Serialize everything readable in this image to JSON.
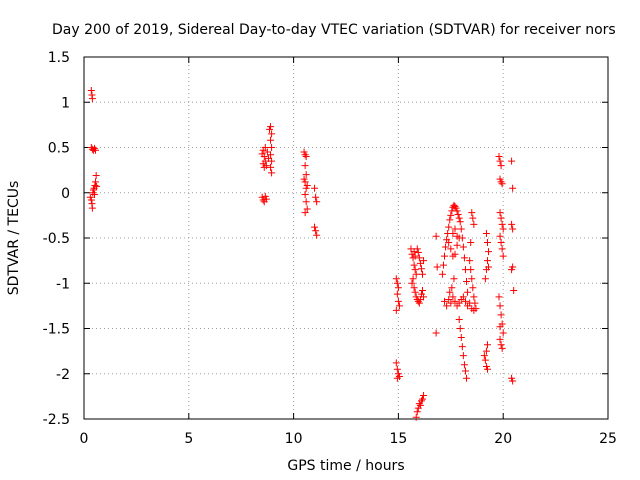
{
  "chart_data": {
    "type": "scatter",
    "title": "Day 200 of 2019, Sidereal Day-to-day VTEC variation (SDTVAR) for receiver nors",
    "xlabel": "GPS time / hours",
    "ylabel": "SDTVAR / TECUs",
    "xlim": [
      0,
      25
    ],
    "ylim": [
      -2.5,
      1.5
    ],
    "xticks": [
      0,
      5,
      10,
      15,
      20,
      25
    ],
    "yticks": [
      -2.5,
      -2,
      -1.5,
      -1,
      -0.5,
      0,
      0.5,
      1,
      1.5
    ],
    "xtick_labels": [
      "0",
      "5",
      "10",
      "15",
      "20",
      "25"
    ],
    "ytick_labels": [
      "-2.5",
      "-2",
      "-1.5",
      "-1",
      "-0.5",
      "0",
      "0.5",
      "1",
      "1.5"
    ],
    "grid": true,
    "marker": "plus",
    "color": "#ff0000",
    "points": [
      [
        0.35,
        1.13
      ],
      [
        0.38,
        1.08
      ],
      [
        0.4,
        1.04
      ],
      [
        0.35,
        0.5
      ],
      [
        0.4,
        0.48
      ],
      [
        0.45,
        0.47
      ],
      [
        0.5,
        0.49
      ],
      [
        0.55,
        0.47
      ],
      [
        0.3,
        -0.05
      ],
      [
        0.35,
        -0.08
      ],
      [
        0.38,
        -0.12
      ],
      [
        0.4,
        -0.17
      ],
      [
        0.42,
        0.0
      ],
      [
        0.45,
        0.03
      ],
      [
        0.48,
        0.05
      ],
      [
        0.5,
        -0.02
      ],
      [
        0.52,
        0.08
      ],
      [
        0.55,
        0.12
      ],
      [
        0.58,
        0.19
      ],
      [
        0.6,
        0.07
      ],
      [
        8.5,
        0.43
      ],
      [
        8.55,
        0.47
      ],
      [
        8.6,
        0.4
      ],
      [
        8.65,
        0.35
      ],
      [
        8.7,
        0.3
      ],
      [
        8.55,
        0.32
      ],
      [
        8.6,
        0.28
      ],
      [
        8.75,
        0.45
      ],
      [
        8.8,
        0.38
      ],
      [
        8.65,
        0.5
      ],
      [
        8.5,
        -0.05
      ],
      [
        8.55,
        -0.08
      ],
      [
        8.6,
        -0.1
      ],
      [
        8.65,
        -0.04
      ],
      [
        8.7,
        -0.07
      ],
      [
        8.85,
        0.7
      ],
      [
        8.9,
        0.73
      ],
      [
        8.95,
        0.65
      ],
      [
        8.9,
        0.58
      ],
      [
        8.95,
        0.5
      ],
      [
        8.9,
        0.42
      ],
      [
        8.95,
        0.35
      ],
      [
        8.9,
        0.28
      ],
      [
        8.95,
        0.22
      ],
      [
        10.5,
        0.45
      ],
      [
        10.55,
        0.42
      ],
      [
        10.6,
        0.4
      ],
      [
        10.55,
        0.3
      ],
      [
        10.6,
        0.2
      ],
      [
        10.55,
        0.12
      ],
      [
        10.6,
        0.05
      ],
      [
        10.55,
        -0.02
      ],
      [
        10.6,
        -0.1
      ],
      [
        10.65,
        -0.18
      ],
      [
        10.55,
        -0.22
      ],
      [
        10.5,
        0.15
      ],
      [
        10.65,
        0.08
      ],
      [
        11.0,
        0.05
      ],
      [
        11.05,
        -0.05
      ],
      [
        11.1,
        -0.1
      ],
      [
        11.0,
        -0.38
      ],
      [
        11.05,
        -0.42
      ],
      [
        11.1,
        -0.47
      ],
      [
        14.9,
        -0.95
      ],
      [
        14.95,
        -1.0
      ],
      [
        15.0,
        -1.05
      ],
      [
        14.95,
        -1.12
      ],
      [
        15.0,
        -1.2
      ],
      [
        15.05,
        -1.25
      ],
      [
        14.9,
        -1.3
      ],
      [
        14.9,
        -1.88
      ],
      [
        14.95,
        -1.95
      ],
      [
        15.0,
        -2.0
      ],
      [
        15.05,
        -2.03
      ],
      [
        14.95,
        -2.05
      ],
      [
        15.6,
        -0.62
      ],
      [
        15.65,
        -0.68
      ],
      [
        15.7,
        -0.72
      ],
      [
        15.75,
        -0.8
      ],
      [
        15.8,
        -0.85
      ],
      [
        15.85,
        -0.9
      ],
      [
        15.7,
        -0.95
      ],
      [
        15.65,
        -1.0
      ],
      [
        15.75,
        -1.05
      ],
      [
        15.8,
        -1.1
      ],
      [
        15.85,
        -1.15
      ],
      [
        15.9,
        -1.18
      ],
      [
        15.95,
        -1.2
      ],
      [
        16.0,
        -1.22
      ],
      [
        16.05,
        -1.18
      ],
      [
        16.1,
        -1.12
      ],
      [
        16.15,
        -1.08
      ],
      [
        16.2,
        -1.15
      ],
      [
        15.75,
        -0.65
      ],
      [
        15.8,
        -0.7
      ],
      [
        15.9,
        -0.62
      ],
      [
        15.95,
        -0.66
      ],
      [
        16.0,
        -0.72
      ],
      [
        16.05,
        -0.78
      ],
      [
        16.1,
        -0.84
      ],
      [
        16.15,
        -0.9
      ],
      [
        16.2,
        -0.75
      ],
      [
        15.85,
        -2.48
      ],
      [
        15.9,
        -2.42
      ],
      [
        15.95,
        -2.38
      ],
      [
        16.0,
        -2.33
      ],
      [
        16.05,
        -2.35
      ],
      [
        16.1,
        -2.3
      ],
      [
        16.15,
        -2.28
      ],
      [
        16.2,
        -2.24
      ],
      [
        16.8,
        -0.48
      ],
      [
        16.85,
        -0.82
      ],
      [
        16.8,
        -1.55
      ],
      [
        17.1,
        -0.9
      ],
      [
        17.15,
        -0.8
      ],
      [
        17.2,
        -0.7
      ],
      [
        17.25,
        -0.6
      ],
      [
        17.3,
        -0.52
      ],
      [
        17.35,
        -0.45
      ],
      [
        17.4,
        -0.38
      ],
      [
        17.45,
        -0.3
      ],
      [
        17.5,
        -0.25
      ],
      [
        17.55,
        -0.2
      ],
      [
        17.6,
        -0.16
      ],
      [
        17.65,
        -0.14
      ],
      [
        17.7,
        -0.15
      ],
      [
        17.75,
        -0.17
      ],
      [
        17.8,
        -0.2
      ],
      [
        17.85,
        -0.24
      ],
      [
        17.9,
        -0.28
      ],
      [
        17.95,
        -0.32
      ],
      [
        18.0,
        -0.4
      ],
      [
        18.05,
        -0.5
      ],
      [
        18.1,
        -0.6
      ],
      [
        18.15,
        -0.72
      ],
      [
        18.2,
        -0.85
      ],
      [
        18.25,
        -0.98
      ],
      [
        18.3,
        -1.1
      ],
      [
        17.2,
        -1.2
      ],
      [
        17.3,
        -1.25
      ],
      [
        17.4,
        -1.18
      ],
      [
        17.5,
        -1.22
      ],
      [
        17.6,
        -1.15
      ],
      [
        17.7,
        -1.2
      ],
      [
        17.8,
        -1.25
      ],
      [
        17.9,
        -1.22
      ],
      [
        18.0,
        -1.18
      ],
      [
        18.1,
        -1.15
      ],
      [
        18.2,
        -1.2
      ],
      [
        18.3,
        -1.25
      ],
      [
        18.4,
        -1.22
      ],
      [
        18.5,
        -1.28
      ],
      [
        18.6,
        -1.3
      ],
      [
        17.45,
        -1.1
      ],
      [
        17.55,
        -1.05
      ],
      [
        17.65,
        -0.95
      ],
      [
        17.4,
        -0.55
      ],
      [
        17.5,
        -0.62
      ],
      [
        17.6,
        -0.7
      ],
      [
        17.7,
        -0.68
      ],
      [
        17.8,
        -0.58
      ],
      [
        17.9,
        -0.5
      ],
      [
        17.6,
        -0.45
      ],
      [
        17.7,
        -0.4
      ],
      [
        17.8,
        -0.48
      ],
      [
        17.9,
        -1.4
      ],
      [
        17.95,
        -1.5
      ],
      [
        18.0,
        -1.6
      ],
      [
        18.05,
        -1.7
      ],
      [
        18.1,
        -1.8
      ],
      [
        18.15,
        -1.9
      ],
      [
        18.2,
        -1.97
      ],
      [
        18.25,
        -2.05
      ],
      [
        18.4,
        -0.75
      ],
      [
        18.45,
        -0.85
      ],
      [
        18.5,
        -0.95
      ],
      [
        18.55,
        -1.05
      ],
      [
        18.6,
        -1.15
      ],
      [
        18.65,
        -1.22
      ],
      [
        18.7,
        -1.28
      ],
      [
        18.5,
        -0.22
      ],
      [
        18.55,
        -0.28
      ],
      [
        18.6,
        -0.35
      ],
      [
        18.45,
        -0.55
      ],
      [
        19.2,
        -0.45
      ],
      [
        19.25,
        -0.55
      ],
      [
        19.3,
        -0.65
      ],
      [
        19.25,
        -0.75
      ],
      [
        19.2,
        -0.85
      ],
      [
        19.15,
        -0.95
      ],
      [
        19.3,
        -0.82
      ],
      [
        19.1,
        -1.8
      ],
      [
        19.15,
        -1.85
      ],
      [
        19.2,
        -1.92
      ],
      [
        19.25,
        -1.95
      ],
      [
        19.2,
        -1.75
      ],
      [
        19.25,
        -1.68
      ],
      [
        19.8,
        0.4
      ],
      [
        19.85,
        0.35
      ],
      [
        19.9,
        0.3
      ],
      [
        19.85,
        0.15
      ],
      [
        19.9,
        0.12
      ],
      [
        19.95,
        0.1
      ],
      [
        19.85,
        -0.22
      ],
      [
        19.9,
        -0.28
      ],
      [
        19.95,
        -0.35
      ],
      [
        20.0,
        -0.4
      ],
      [
        19.85,
        -0.48
      ],
      [
        19.9,
        -0.55
      ],
      [
        19.95,
        -0.62
      ],
      [
        20.0,
        -0.7
      ],
      [
        19.8,
        -1.15
      ],
      [
        19.85,
        -1.25
      ],
      [
        19.9,
        -1.35
      ],
      [
        19.95,
        -1.45
      ],
      [
        20.0,
        -1.55
      ],
      [
        19.85,
        -1.62
      ],
      [
        19.9,
        -1.68
      ],
      [
        19.95,
        -1.72
      ],
      [
        19.85,
        -1.48
      ],
      [
        20.4,
        0.35
      ],
      [
        20.45,
        0.05
      ],
      [
        20.4,
        -0.35
      ],
      [
        20.45,
        -0.4
      ],
      [
        20.4,
        -0.85
      ],
      [
        20.45,
        -0.82
      ],
      [
        20.5,
        -1.08
      ],
      [
        20.4,
        -2.05
      ],
      [
        20.45,
        -2.08
      ]
    ]
  }
}
